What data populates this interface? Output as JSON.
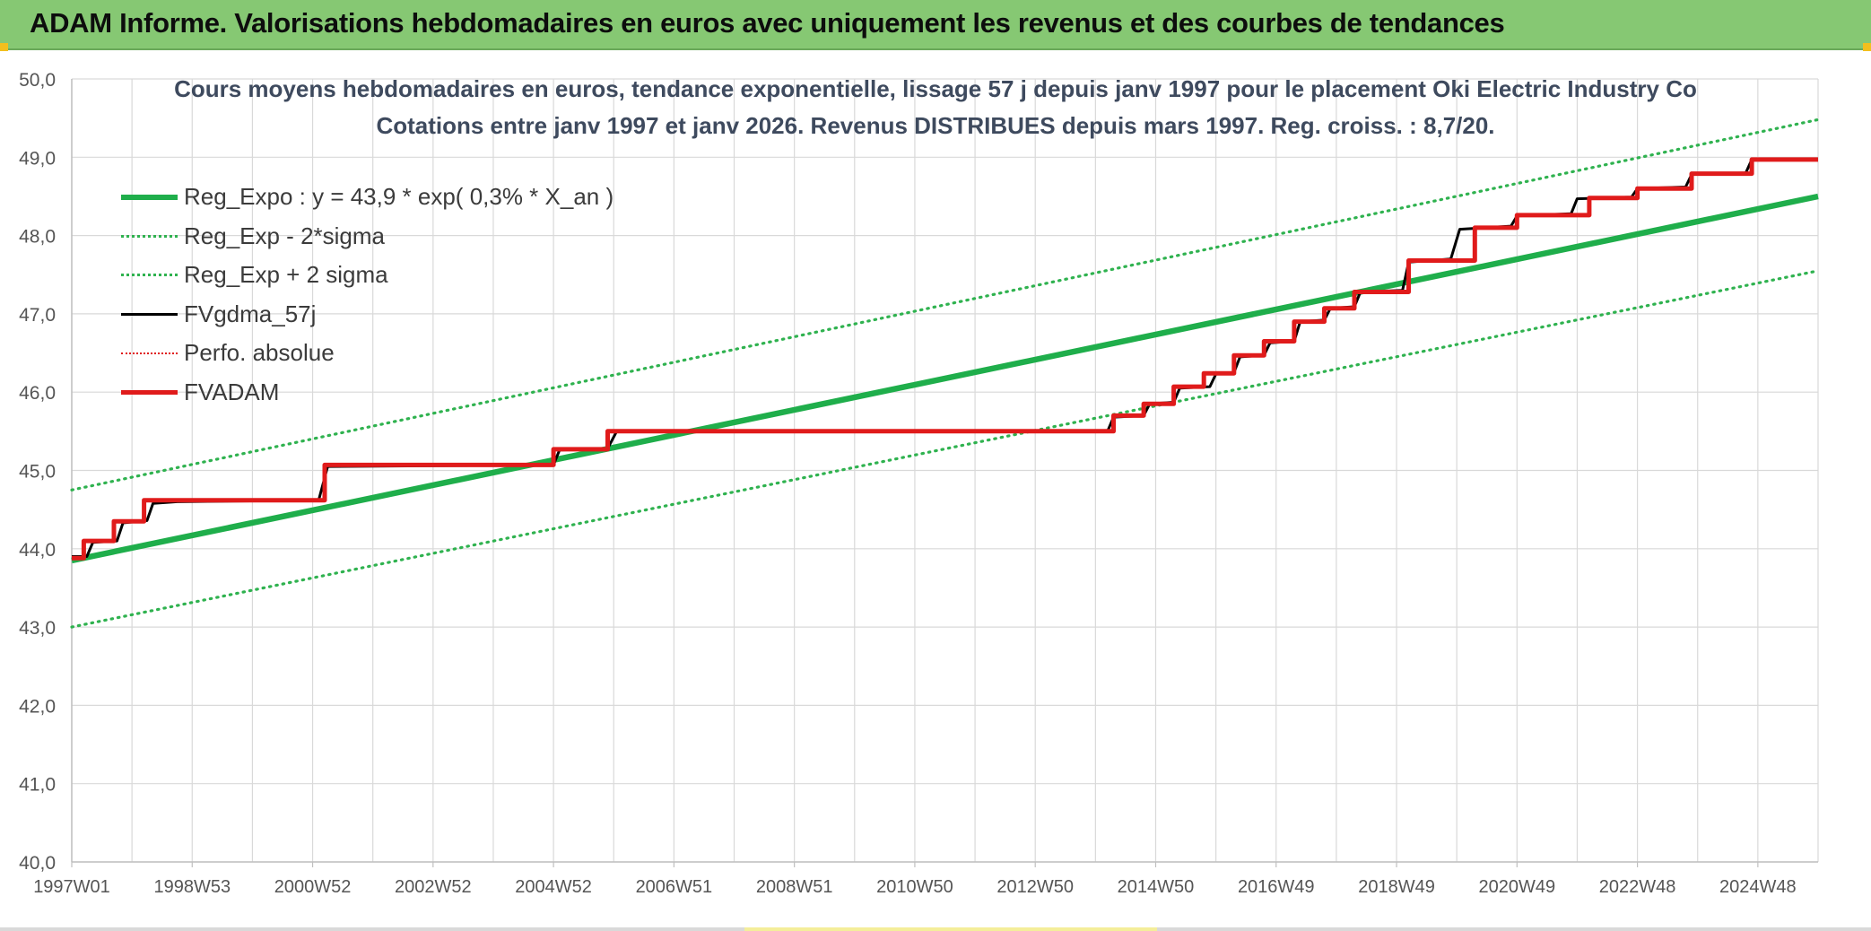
{
  "banner": {
    "title": "ADAM Informe. Valorisations hebdomadaires en euros avec uniquement les revenus et des courbes de tendances"
  },
  "colors": {
    "banner_bg": "#86c873",
    "reg_expo": "#1fae4b",
    "sigma": "#2fb24f",
    "fvgdma": "#000000",
    "perfo": "#e01b1b",
    "fvadam": "#e01b1b",
    "grid": "#d9d9d9",
    "title_text": "#3e4a5e"
  },
  "chart_data": {
    "type": "line",
    "title_line1": "Cours moyens hebdomadaires en euros, tendance exponentielle, lissage 57 j depuis janv 1997 pour le placement Oki Electric Industry Co",
    "title_line2": "Cotations entre janv 1997 et janv 2026. Revenus DISTRIBUES depuis mars 1997. Reg. croiss. : 8,7/20.",
    "xlabel": "",
    "ylabel": "",
    "xlim": [
      1997.0,
      2026.0
    ],
    "ylim": [
      40.0,
      50.0
    ],
    "y_ticks": [
      "40,0",
      "41,0",
      "42,0",
      "43,0",
      "44,0",
      "45,0",
      "46,0",
      "47,0",
      "48,0",
      "49,0",
      "50,0"
    ],
    "x_ticks": [
      {
        "label": "1997W01",
        "x": 1997.0
      },
      {
        "label": "1998W53",
        "x": 1999.0
      },
      {
        "label": "2000W52",
        "x": 2001.0
      },
      {
        "label": "2002W52",
        "x": 2003.0
      },
      {
        "label": "2004W52",
        "x": 2005.0
      },
      {
        "label": "2006W51",
        "x": 2007.0
      },
      {
        "label": "2008W51",
        "x": 2009.0
      },
      {
        "label": "2010W50",
        "x": 2011.0
      },
      {
        "label": "2012W50",
        "x": 2013.0
      },
      {
        "label": "2014W50",
        "x": 2015.0
      },
      {
        "label": "2016W49",
        "x": 2017.0
      },
      {
        "label": "2018W49",
        "x": 2019.0
      },
      {
        "label": "2020W49",
        "x": 2021.0
      },
      {
        "label": "2022W48",
        "x": 2023.0
      },
      {
        "label": "2024W48",
        "x": 2025.0
      }
    ],
    "grid": true,
    "legend_position": "top-left",
    "series": [
      {
        "name": "Reg_Expo : y = 43,9 * exp( 0,3% *  X_an )",
        "style": "solid-thick",
        "color": "#1fae4b",
        "points": [
          [
            1997.0,
            43.85
          ],
          [
            2026.0,
            48.5
          ]
        ]
      },
      {
        "name": "Reg_Exp - 2*sigma",
        "style": "dotted",
        "color": "#2fb24f",
        "points": [
          [
            1997.0,
            43.0
          ],
          [
            2026.0,
            47.55
          ]
        ]
      },
      {
        "name": "Reg_Exp + 2 sigma",
        "style": "dotted",
        "color": "#2fb24f",
        "points": [
          [
            1997.0,
            44.75
          ],
          [
            2026.0,
            49.48
          ]
        ]
      },
      {
        "name": "FVgdma_57j",
        "style": "solid",
        "color": "#000000",
        "points": [
          [
            1997.0,
            43.9
          ],
          [
            1997.25,
            43.9
          ],
          [
            1997.35,
            44.08
          ],
          [
            1997.75,
            44.1
          ],
          [
            1997.85,
            44.33
          ],
          [
            1998.25,
            44.36
          ],
          [
            1998.35,
            44.58
          ],
          [
            1998.75,
            44.6
          ],
          [
            2001.1,
            44.62
          ],
          [
            2001.25,
            45.05
          ],
          [
            2005.0,
            45.07
          ],
          [
            2005.1,
            45.26
          ],
          [
            2005.9,
            45.28
          ],
          [
            2006.05,
            45.5
          ],
          [
            2014.2,
            45.5
          ],
          [
            2014.3,
            45.68
          ],
          [
            2014.8,
            45.7
          ],
          [
            2014.9,
            45.85
          ],
          [
            2015.3,
            45.87
          ],
          [
            2015.4,
            46.05
          ],
          [
            2015.9,
            46.07
          ],
          [
            2016.0,
            46.23
          ],
          [
            2016.3,
            46.25
          ],
          [
            2016.4,
            46.45
          ],
          [
            2016.8,
            46.47
          ],
          [
            2016.9,
            46.63
          ],
          [
            2017.3,
            46.65
          ],
          [
            2017.4,
            46.9
          ],
          [
            2017.8,
            46.92
          ],
          [
            2017.9,
            47.07
          ],
          [
            2018.3,
            47.09
          ],
          [
            2018.4,
            47.28
          ],
          [
            2019.1,
            47.3
          ],
          [
            2019.2,
            47.66
          ],
          [
            2019.9,
            47.7
          ],
          [
            2020.05,
            48.08
          ],
          [
            2020.9,
            48.12
          ],
          [
            2021.0,
            48.25
          ],
          [
            2021.9,
            48.28
          ],
          [
            2022.0,
            48.47
          ],
          [
            2022.9,
            48.49
          ],
          [
            2023.0,
            48.6
          ],
          [
            2023.8,
            48.62
          ],
          [
            2023.9,
            48.78
          ],
          [
            2024.8,
            48.8
          ],
          [
            2024.9,
            48.97
          ],
          [
            2026.0,
            48.98
          ]
        ]
      },
      {
        "name": "Perfo. absolue",
        "style": "dotted",
        "color": "#e01b1b",
        "points": []
      },
      {
        "name": "FVADAM",
        "style": "solid-thick",
        "color": "#e01b1b",
        "points": [
          [
            1997.0,
            43.88
          ],
          [
            1997.2,
            43.88
          ],
          [
            1997.2,
            44.1
          ],
          [
            1997.7,
            44.1
          ],
          [
            1997.7,
            44.35
          ],
          [
            1998.2,
            44.35
          ],
          [
            1998.2,
            44.62
          ],
          [
            2001.2,
            44.62
          ],
          [
            2001.2,
            45.07
          ],
          [
            2005.0,
            45.07
          ],
          [
            2005.0,
            45.27
          ],
          [
            2005.9,
            45.27
          ],
          [
            2005.9,
            45.5
          ],
          [
            2014.3,
            45.5
          ],
          [
            2014.3,
            45.7
          ],
          [
            2014.8,
            45.7
          ],
          [
            2014.8,
            45.85
          ],
          [
            2015.3,
            45.85
          ],
          [
            2015.3,
            46.07
          ],
          [
            2015.8,
            46.07
          ],
          [
            2015.8,
            46.24
          ],
          [
            2016.3,
            46.24
          ],
          [
            2016.3,
            46.47
          ],
          [
            2016.8,
            46.47
          ],
          [
            2016.8,
            46.65
          ],
          [
            2017.3,
            46.65
          ],
          [
            2017.3,
            46.9
          ],
          [
            2017.8,
            46.9
          ],
          [
            2017.8,
            47.07
          ],
          [
            2018.3,
            47.07
          ],
          [
            2018.3,
            47.28
          ],
          [
            2019.2,
            47.28
          ],
          [
            2019.2,
            47.68
          ],
          [
            2020.3,
            47.68
          ],
          [
            2020.3,
            48.1
          ],
          [
            2021.0,
            48.1
          ],
          [
            2021.0,
            48.26
          ],
          [
            2022.2,
            48.26
          ],
          [
            2022.2,
            48.48
          ],
          [
            2023.0,
            48.48
          ],
          [
            2023.0,
            48.6
          ],
          [
            2023.9,
            48.6
          ],
          [
            2023.9,
            48.79
          ],
          [
            2024.9,
            48.79
          ],
          [
            2024.9,
            48.97
          ],
          [
            2026.0,
            48.97
          ]
        ]
      }
    ]
  }
}
